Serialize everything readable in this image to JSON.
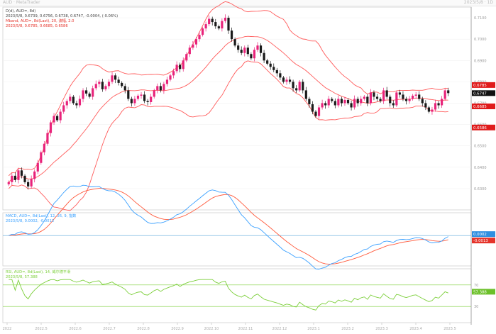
{
  "window": {
    "title_left": "AUD · MetaTrader",
    "title_right": "2023/5/8 · 1D"
  },
  "main_panel": {
    "line1": "D(d), AUD=, 8d)",
    "line2": "2023/5/8, 0.6739, 0.6756, 0.6738, 0.6747, -0.0004, (-0.06%)",
    "line3": "Mband, AUD=, 8d(Last), 20, 波幅, 2.0",
    "line4": "2023/5/8, 0.6785, 0.6685, 0.6586",
    "price_badge": "0.6747",
    "upper_badge": "0.6785",
    "mid_badge": "0.6685",
    "lower_badge": "0.6586"
  },
  "macd_panel": {
    "line1": "MACD, AUD=, 8d(Last), 12, 26, 9, 指数",
    "line2": "2023/5/8, 0.0002, -0.0013",
    "macd_badge": "0.0002",
    "signal_badge": "-0.0013"
  },
  "rsi_panel": {
    "line1": "RSI, AUD=, 8d(Last), 14, 威尔德平滑",
    "line2": "2023/5/8, 57.388",
    "rsi_badge": "57.388",
    "level_high": "70",
    "level_low": "30"
  },
  "chart_data": [
    {
      "id": "price",
      "type": "candlestick",
      "title": "AUD= daily",
      "ylim": [
        0.62,
        0.715
      ],
      "y_ticks": [
        0.63,
        0.64,
        0.65,
        0.66,
        0.67,
        0.68,
        0.69,
        0.7,
        0.71
      ],
      "close": [
        0.633,
        0.636,
        0.634,
        0.6385,
        0.636,
        0.633,
        0.631,
        0.6345,
        0.638,
        0.642,
        0.647,
        0.651,
        0.656,
        0.661,
        0.664,
        0.662,
        0.666,
        0.669,
        0.671,
        0.673,
        0.67,
        0.669,
        0.672,
        0.676,
        0.6745,
        0.673,
        0.677,
        0.679,
        0.68,
        0.6765,
        0.678,
        0.68,
        0.683,
        0.681,
        0.6795,
        0.678,
        0.676,
        0.672,
        0.67,
        0.672,
        0.6735,
        0.674,
        0.671,
        0.6705,
        0.673,
        0.676,
        0.678,
        0.676,
        0.679,
        0.681,
        0.683,
        0.685,
        0.688,
        0.686,
        0.69,
        0.693,
        0.696,
        0.6975,
        0.7,
        0.702,
        0.705,
        0.707,
        0.7095,
        0.708,
        0.706,
        0.705,
        0.7085,
        0.71,
        0.704,
        0.7,
        0.697,
        0.695,
        0.6935,
        0.696,
        0.693,
        0.691,
        0.695,
        0.697,
        0.6935,
        0.69,
        0.6885,
        0.687,
        0.6855,
        0.684,
        0.682,
        0.68,
        0.681,
        0.68,
        0.677,
        0.676,
        0.68,
        0.676,
        0.672,
        0.6695,
        0.666,
        0.664,
        0.668,
        0.67,
        0.669,
        0.672,
        0.671,
        0.669,
        0.672,
        0.67,
        0.6715,
        0.67,
        0.668,
        0.672,
        0.67,
        0.672,
        0.673,
        0.67,
        0.675,
        0.673,
        0.672,
        0.671,
        0.676,
        0.673,
        0.67,
        0.669,
        0.675,
        0.674,
        0.672,
        0.671,
        0.672,
        0.6735,
        0.674,
        0.672,
        0.67,
        0.668,
        0.666,
        0.667,
        0.67,
        0.669,
        0.672,
        0.676,
        0.6747
      ],
      "bollinger": {
        "period": 20,
        "deviation": 2.0,
        "upper_last": 0.6785,
        "middle_last": 0.6685,
        "lower_last": 0.6586
      },
      "colors": {
        "up": "#e8237a",
        "down": "#1a1a1a",
        "bands": "#ff5a5a"
      },
      "last_price": 0.6747
    },
    {
      "id": "macd",
      "type": "line",
      "params": [
        12,
        26,
        9
      ],
      "macd_last": 0.0002,
      "signal_last": -0.0013,
      "ylim": [
        -0.006,
        0.0045
      ],
      "colors": {
        "macd": "#3aa0ff",
        "signal": "#ff5a3c"
      }
    },
    {
      "id": "rsi",
      "type": "line",
      "period": 14,
      "last": 57.388,
      "ylim": [
        0,
        100
      ],
      "levels": [
        30,
        70
      ],
      "colors": {
        "rsi": "#7ccf3a",
        "levels": "#7ccf3a"
      }
    }
  ],
  "x_axis": {
    "labels": [
      "2022",
      "2022.5",
      "2022.6",
      "2022.7",
      "2022.8",
      "2022.9",
      "2022.10",
      "2022.11",
      "2022.12",
      "2023.1",
      "2023.2",
      "2023.3",
      "2023.4",
      "2023.5"
    ]
  }
}
